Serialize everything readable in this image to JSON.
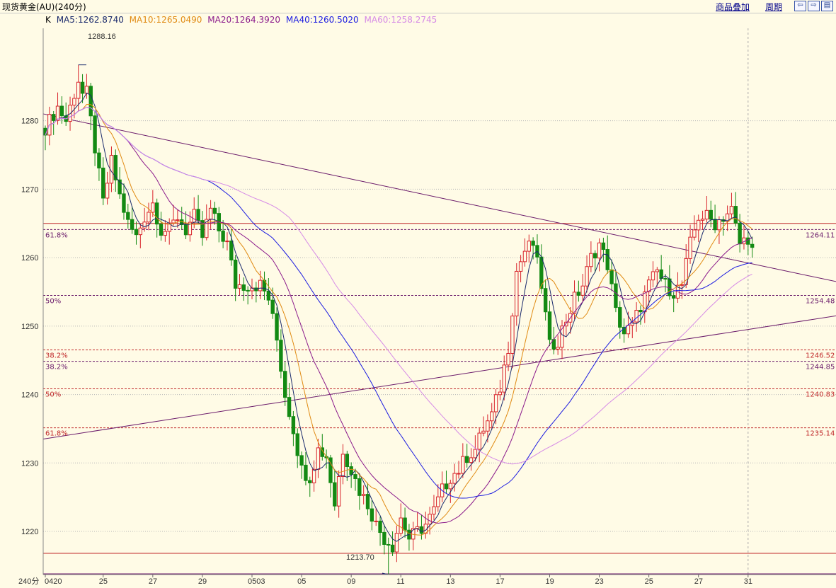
{
  "header": {
    "title": "现货黄金(AU)(240分)",
    "menu_overlay": "商品叠加",
    "menu_period": "周期",
    "nav_left": "⇦",
    "nav_right": "⇨",
    "nav_grid": "▤"
  },
  "ma_legend": {
    "k": "K",
    "ma5": "MA5:1262.8740",
    "ma10": "MA10:1265.0490",
    "ma20": "MA20:1264.3920",
    "ma40": "MA40:1260.5020",
    "ma60": "MA60:1258.2745"
  },
  "colors": {
    "ma5": "#1a2a6c",
    "ma10": "#e08a12",
    "ma20": "#8b1a8b",
    "ma40": "#1b1be0",
    "ma60": "#d68ae6",
    "up": "#d8222a",
    "down": "#138a13",
    "hline": "#c0282a",
    "trend": "#6a1a6a"
  },
  "chart_data": {
    "type": "candlestick",
    "ylim": [
      1213.7,
      1293.5
    ],
    "yticks": [
      1220,
      1230,
      1240,
      1250,
      1260,
      1270,
      1280
    ],
    "x_axis_label": "240分",
    "x_ticks": [
      {
        "i": 0,
        "label": "0420"
      },
      {
        "i": 14,
        "label": "25"
      },
      {
        "i": 26,
        "label": "27"
      },
      {
        "i": 38,
        "label": "29"
      },
      {
        "i": 50,
        "label": "0503"
      },
      {
        "i": 62,
        "label": "05"
      },
      {
        "i": 74,
        "label": "09"
      },
      {
        "i": 86,
        "label": "11"
      },
      {
        "i": 98,
        "label": "13"
      },
      {
        "i": 110,
        "label": "17"
      },
      {
        "i": 122,
        "label": "19"
      },
      {
        "i": 134,
        "label": "23"
      },
      {
        "i": 146,
        "label": "25"
      },
      {
        "i": 158,
        "label": "27"
      },
      {
        "i": 170,
        "label": "31"
      }
    ],
    "high_label": "1288.16",
    "low_label": "1213.70",
    "high_value": 1288.16,
    "low_value": 1213.7,
    "fib_levels": [
      {
        "value": 1264.11,
        "left": "61.8%",
        "right": "1264.11",
        "color": "#6a1a6a"
      },
      {
        "value": 1254.48,
        "left": "50%",
        "right": "1254.48",
        "color": "#6a1a6a"
      },
      {
        "value": 1246.52,
        "left": "38.2%",
        "right": "1246.52",
        "color": "#c0282a"
      },
      {
        "value": 1244.85,
        "left": "38.2%",
        "right": "1244.85",
        "color": "#6a1a6a"
      },
      {
        "value": 1240.83,
        "left": "50%",
        "right": "1240.83",
        "color": "#c0282a"
      },
      {
        "value": 1235.14,
        "left": "61.8%",
        "right": "1235.14",
        "color": "#c0282a"
      }
    ],
    "solid_levels": [
      {
        "value": 1265.0,
        "color": "#c0282a"
      },
      {
        "value": 1216.8,
        "color": "#c0282a"
      },
      {
        "value": 1213.8,
        "color": "#6a1a6a"
      }
    ],
    "trendlines": [
      {
        "x1": 0,
        "y1": 1281.0,
        "x2": 178.5,
        "y2": 1256.5
      },
      {
        "x1": 0,
        "y1": 1233.5,
        "x2": 178.5,
        "y2": 1251.5
      }
    ],
    "anchors": [
      [
        0,
        1279
      ],
      [
        3,
        1282
      ],
      [
        5,
        1280
      ],
      [
        8,
        1286
      ],
      [
        10,
        1284
      ],
      [
        12,
        1276
      ],
      [
        14,
        1268
      ],
      [
        16,
        1274
      ],
      [
        18,
        1269
      ],
      [
        20,
        1265
      ],
      [
        22,
        1263
      ],
      [
        24,
        1266
      ],
      [
        26,
        1268
      ],
      [
        28,
        1264
      ],
      [
        30,
        1264
      ],
      [
        32,
        1266
      ],
      [
        34,
        1264
      ],
      [
        36,
        1266
      ],
      [
        38,
        1263
      ],
      [
        40,
        1267
      ],
      [
        42,
        1264
      ],
      [
        44,
        1262
      ],
      [
        46,
        1256
      ],
      [
        48,
        1256
      ],
      [
        50,
        1256
      ],
      [
        52,
        1256
      ],
      [
        54,
        1254
      ],
      [
        56,
        1248
      ],
      [
        58,
        1240
      ],
      [
        60,
        1235
      ],
      [
        62,
        1229
      ],
      [
        64,
        1228
      ],
      [
        66,
        1232
      ],
      [
        68,
        1231
      ],
      [
        70,
        1224
      ],
      [
        72,
        1232
      ],
      [
        74,
        1229
      ],
      [
        76,
        1226
      ],
      [
        78,
        1224
      ],
      [
        80,
        1221
      ],
      [
        82,
        1219
      ],
      [
        84,
        1218
      ],
      [
        86,
        1222
      ],
      [
        88,
        1219
      ],
      [
        90,
        1220
      ],
      [
        92,
        1221
      ],
      [
        94,
        1223
      ],
      [
        96,
        1226
      ],
      [
        98,
        1228
      ],
      [
        100,
        1229
      ],
      [
        102,
        1231
      ],
      [
        104,
        1232
      ],
      [
        106,
        1235
      ],
      [
        108,
        1237
      ],
      [
        110,
        1241
      ],
      [
        112,
        1247
      ],
      [
        114,
        1258
      ],
      [
        116,
        1261
      ],
      [
        118,
        1262
      ],
      [
        120,
        1256
      ],
      [
        122,
        1247
      ],
      [
        124,
        1248
      ],
      [
        126,
        1251
      ],
      [
        128,
        1254
      ],
      [
        130,
        1256
      ],
      [
        132,
        1260
      ],
      [
        134,
        1262
      ],
      [
        136,
        1259
      ],
      [
        138,
        1252
      ],
      [
        140,
        1249
      ],
      [
        142,
        1250
      ],
      [
        144,
        1253
      ],
      [
        146,
        1256
      ],
      [
        148,
        1258
      ],
      [
        150,
        1256
      ],
      [
        152,
        1255
      ],
      [
        154,
        1256
      ],
      [
        156,
        1262
      ],
      [
        158,
        1266
      ],
      [
        160,
        1266
      ],
      [
        162,
        1265
      ],
      [
        164,
        1266
      ],
      [
        166,
        1267
      ],
      [
        168,
        1262
      ],
      [
        170,
        1263
      ],
      [
        171,
        1261
      ]
    ],
    "ma_end": {
      "ma5": 1262.874,
      "ma10": 1265.049,
      "ma20": 1264.392,
      "ma40": 1260.502,
      "ma60": 1258.2745
    }
  }
}
